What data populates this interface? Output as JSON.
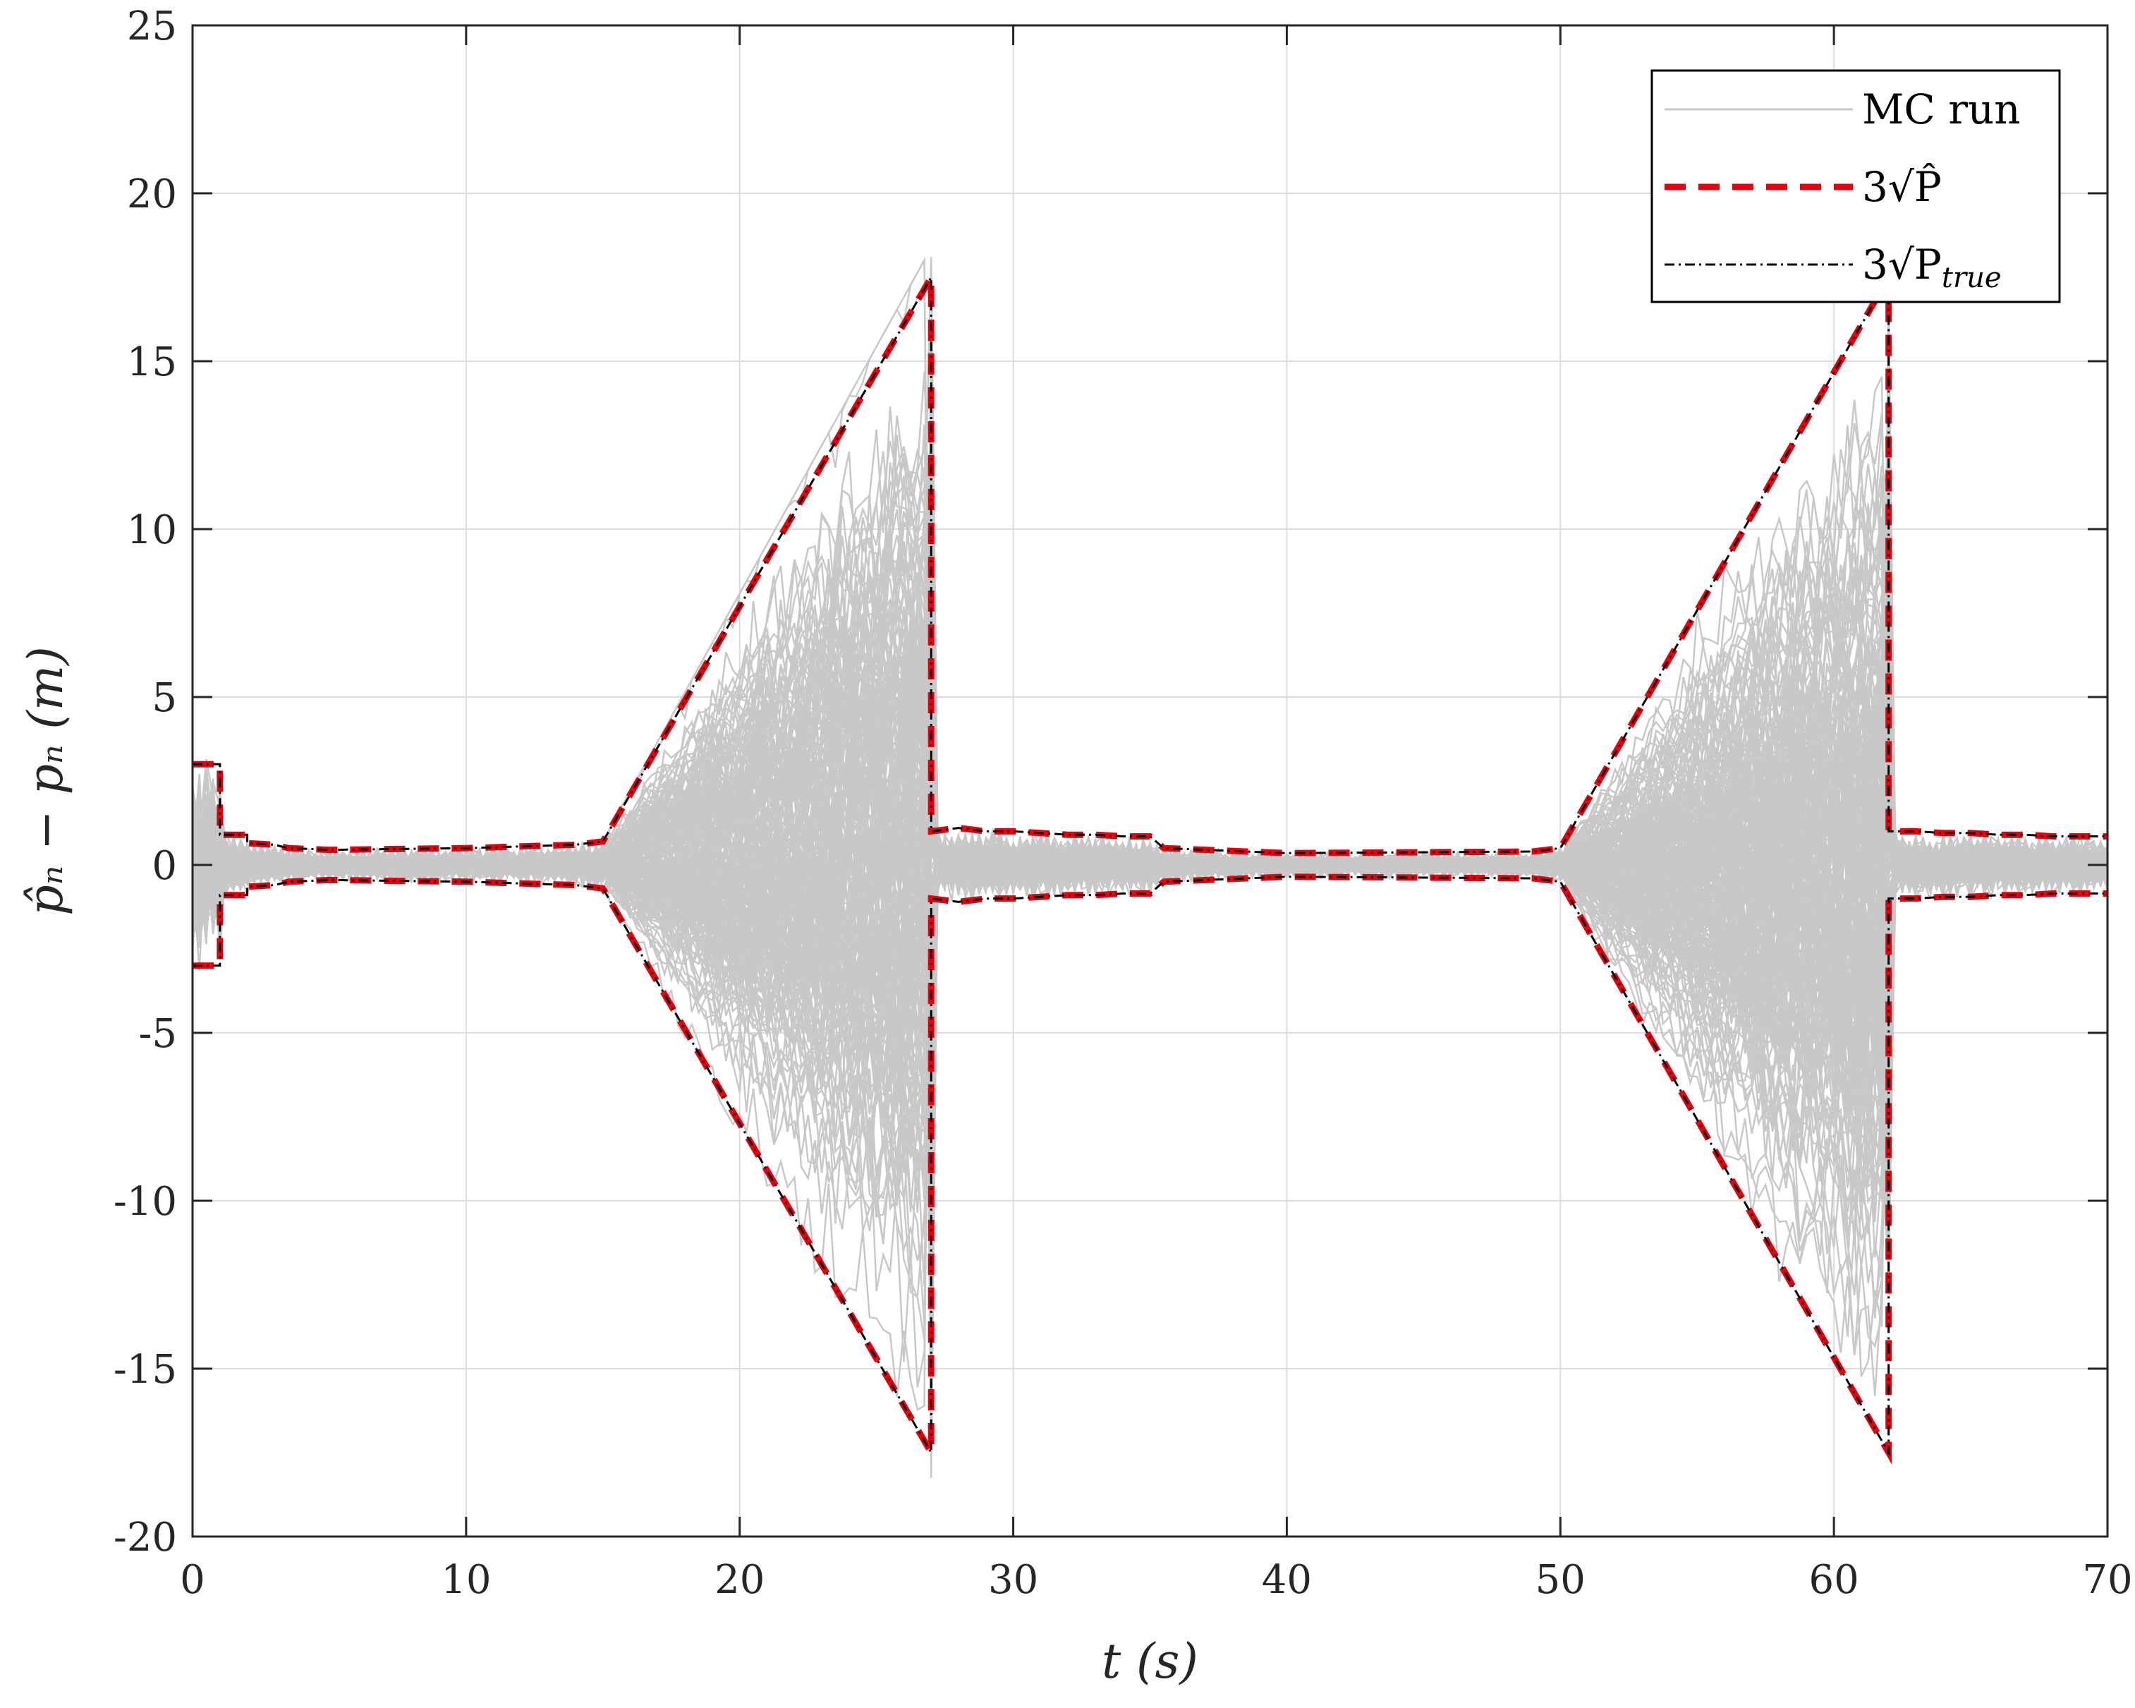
{
  "chart_data": {
    "type": "line",
    "title": "",
    "xlabel": "t (s)",
    "ylabel": "p̂_n − p_n (m)",
    "xlim": [
      0,
      70
    ],
    "ylim": [
      -20,
      25
    ],
    "grid": true,
    "legend_position": "top-right",
    "x_ticks": [
      0,
      10,
      20,
      30,
      40,
      50,
      60,
      70
    ],
    "y_ticks": [
      -20,
      -15,
      -10,
      -5,
      0,
      5,
      10,
      15,
      20,
      25
    ],
    "x_tick_labels": [
      "0",
      "10",
      "20",
      "30",
      "40",
      "50",
      "60",
      "70"
    ],
    "y_tick_labels": [
      "-20",
      "-15",
      "-10",
      "-5",
      "0",
      "5",
      "10",
      "15",
      "20",
      "25"
    ],
    "legend": [
      {
        "label": "MC run",
        "color": "#c8c8c8",
        "style": "solid"
      },
      {
        "label": "3√P̂",
        "color": "#e8000b",
        "style": "dashed"
      },
      {
        "label": "3√P_true",
        "color": "#000000",
        "style": "dashdot"
      }
    ],
    "bound_envelope": {
      "description_points_x": [
        0,
        1,
        1,
        2,
        2,
        3,
        3.5,
        5,
        10,
        14,
        15,
        27,
        27,
        28,
        29,
        30,
        31,
        32,
        33,
        34,
        35,
        35.5,
        40,
        49,
        50,
        62,
        62,
        63,
        64,
        65,
        66,
        67,
        68,
        69,
        70
      ],
      "upper_y": [
        3.0,
        3.0,
        0.9,
        0.9,
        0.65,
        0.6,
        0.5,
        0.45,
        0.5,
        0.6,
        0.7,
        17.5,
        1.0,
        1.1,
        1.0,
        1.0,
        0.95,
        0.9,
        0.9,
        0.85,
        0.85,
        0.5,
        0.35,
        0.4,
        0.5,
        17.5,
        1.0,
        1.0,
        0.95,
        0.95,
        0.9,
        0.9,
        0.85,
        0.85,
        0.85
      ]
    },
    "series": [
      {
        "name": "MC run",
        "color": "#c8c8c8",
        "runs": 200,
        "seed": 7
      },
      {
        "name": "3√P̂",
        "color": "#e8000b"
      },
      {
        "name": "3√P_true",
        "color": "#000000"
      }
    ]
  }
}
